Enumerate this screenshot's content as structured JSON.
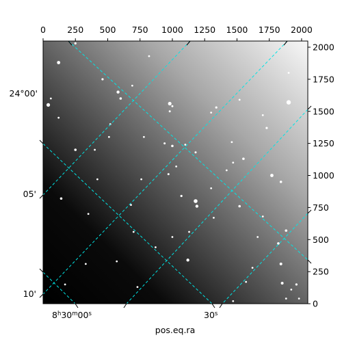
{
  "chart_data": {
    "type": "image",
    "xlabel": "pos.eq.ra",
    "ylabel": "",
    "pixel_axis_x": {
      "range": [
        0,
        2048
      ],
      "ticks": [
        0,
        250,
        500,
        750,
        1000,
        1250,
        1500,
        1750,
        2000
      ]
    },
    "pixel_axis_y": {
      "range": [
        0,
        2048
      ],
      "ticks": [
        0,
        250,
        500,
        750,
        1000,
        1250,
        1500,
        1750,
        2000
      ]
    },
    "ra_ticks": [
      {
        "label_main": "8",
        "sup1": "h",
        "mid": "30",
        "sup2": "m",
        "tail": "00",
        "sup3": "s"
      },
      {
        "label_main": "30",
        "sup1": "s",
        "mid": "",
        "sup2": "",
        "tail": "",
        "sup3": ""
      }
    ],
    "dec_ticks": [
      "24°00'",
      "05'",
      "10'"
    ],
    "grid": {
      "on": true,
      "color": "#00e5e5",
      "style": "dashed"
    },
    "image": {
      "colormap": "gray",
      "background": "gradient dark lower-left to light upper-right"
    }
  },
  "stars": [
    [
      120,
      1880,
      2.4
    ],
    [
      250,
      2030,
      1.6
    ],
    [
      460,
      1750,
      1.6
    ],
    [
      40,
      1550,
      2.6
    ],
    [
      60,
      1600,
      1.4
    ],
    [
      580,
      1650,
      2.2
    ],
    [
      600,
      1600,
      1.8
    ],
    [
      690,
      1700,
      1.4
    ],
    [
      1000,
      1540,
      1.5
    ],
    [
      980,
      1560,
      2.6
    ],
    [
      980,
      1500,
      1.5
    ],
    [
      1300,
      1490,
      1.4
    ],
    [
      1340,
      1530,
      1.6
    ],
    [
      1700,
      1470,
      1.4
    ],
    [
      1730,
      1370,
      1.6
    ],
    [
      1900,
      1570,
      3.2
    ],
    [
      510,
      1300,
      1.4
    ],
    [
      780,
      1300,
      1.4
    ],
    [
      940,
      1250,
      1.5
    ],
    [
      1000,
      1230,
      1.8
    ],
    [
      1100,
      1240,
      1.4
    ],
    [
      1180,
      1180,
      1.5
    ],
    [
      400,
      1200,
      1.4
    ],
    [
      250,
      1200,
      1.8
    ],
    [
      1550,
      1130,
      1.8
    ],
    [
      1470,
      1100,
      1.4
    ],
    [
      1420,
      1040,
      1.4
    ],
    [
      1770,
      1000,
      2.4
    ],
    [
      1840,
      950,
      1.8
    ],
    [
      970,
      1010,
      1.5
    ],
    [
      1030,
      1070,
      1.4
    ],
    [
      140,
      820,
      1.8
    ],
    [
      350,
      700,
      1.4
    ],
    [
      680,
      770,
      1.4
    ],
    [
      1070,
      840,
      1.6
    ],
    [
      1180,
      800,
      2.8
    ],
    [
      1190,
      760,
      2.2
    ],
    [
      1520,
      760,
      1.8
    ],
    [
      1880,
      570,
      1.8
    ],
    [
      1820,
      470,
      1.8
    ],
    [
      1660,
      520,
      1.4
    ],
    [
      700,
      560,
      1.4
    ],
    [
      870,
      440,
      1.4
    ],
    [
      1000,
      520,
      1.4
    ],
    [
      1130,
      560,
      1.4
    ],
    [
      1120,
      340,
      2.2
    ],
    [
      570,
      330,
      1.4
    ],
    [
      330,
      310,
      1.4
    ],
    [
      1840,
      310,
      2.0
    ],
    [
      1850,
      160,
      2.0
    ],
    [
      1960,
      150,
      1.6
    ],
    [
      1920,
      110,
      1.4
    ],
    [
      1570,
      170,
      1.4
    ],
    [
      1470,
      20,
      1.4
    ],
    [
      1700,
      680,
      1.4
    ],
    [
      730,
      130,
      1.4
    ],
    [
      170,
      150,
      1.4
    ],
    [
      420,
      970,
      1.4
    ],
    [
      1320,
      670,
      1.4
    ],
    [
      1880,
      40,
      1.4
    ],
    [
      1980,
      40,
      1.4
    ],
    [
      1620,
      280,
      1.4
    ],
    [
      520,
      1400,
      1.4
    ],
    [
      120,
      1450,
      1.4
    ],
    [
      1520,
      1590,
      1.4
    ],
    [
      1900,
      1800,
      1.4
    ],
    [
      820,
      1930,
      1.4
    ],
    [
      1460,
      1260,
      1.4
    ],
    [
      1300,
      900,
      1.4
    ],
    [
      760,
      970,
      1.4
    ]
  ]
}
